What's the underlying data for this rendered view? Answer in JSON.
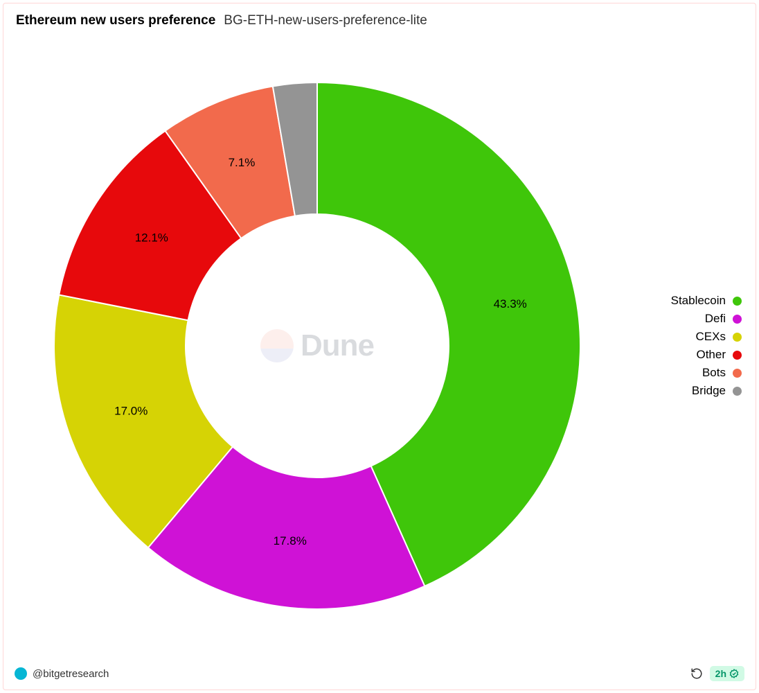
{
  "header": {
    "title": "Ethereum new users preference",
    "subtitle": "BG-ETH-new-users-preference-lite"
  },
  "chart": {
    "type": "donut",
    "inner_radius_ratio": 0.5,
    "outer_radius": 380,
    "stroke_color": "#ffffff",
    "stroke_width": 2,
    "label_fontsize": 17,
    "label_color": "#000000",
    "watermark_text": "Dune",
    "watermark_logo_colors": {
      "top": "#f9c0b8",
      "bottom": "#b9bde0"
    },
    "slices": [
      {
        "name": "Stablecoin",
        "value": 43.3,
        "label": "43.3%",
        "color": "#3fc60a"
      },
      {
        "name": "Defi",
        "value": 17.8,
        "label": "17.8%",
        "color": "#cf12d6"
      },
      {
        "name": "CEXs",
        "value": 17.0,
        "label": "17.0%",
        "color": "#d6d305"
      },
      {
        "name": "Other",
        "value": 12.1,
        "label": "12.1%",
        "color": "#e7090c"
      },
      {
        "name": "Bots",
        "value": 7.1,
        "label": "7.1%",
        "color": "#f26a4c"
      },
      {
        "name": "Bridge",
        "value": 2.7,
        "label": "",
        "color": "#949494"
      }
    ]
  },
  "legend": {
    "fontsize": 17,
    "items": [
      {
        "label": "Stablecoin",
        "color": "#3fc60a"
      },
      {
        "label": "Defi",
        "color": "#cf12d6"
      },
      {
        "label": "CEXs",
        "color": "#d6d305"
      },
      {
        "label": "Other",
        "color": "#e7090c"
      },
      {
        "label": "Bots",
        "color": "#f26a4c"
      },
      {
        "label": "Bridge",
        "color": "#949494"
      }
    ]
  },
  "footer": {
    "author": "@bitgetresearch",
    "time_badge": "2h"
  }
}
